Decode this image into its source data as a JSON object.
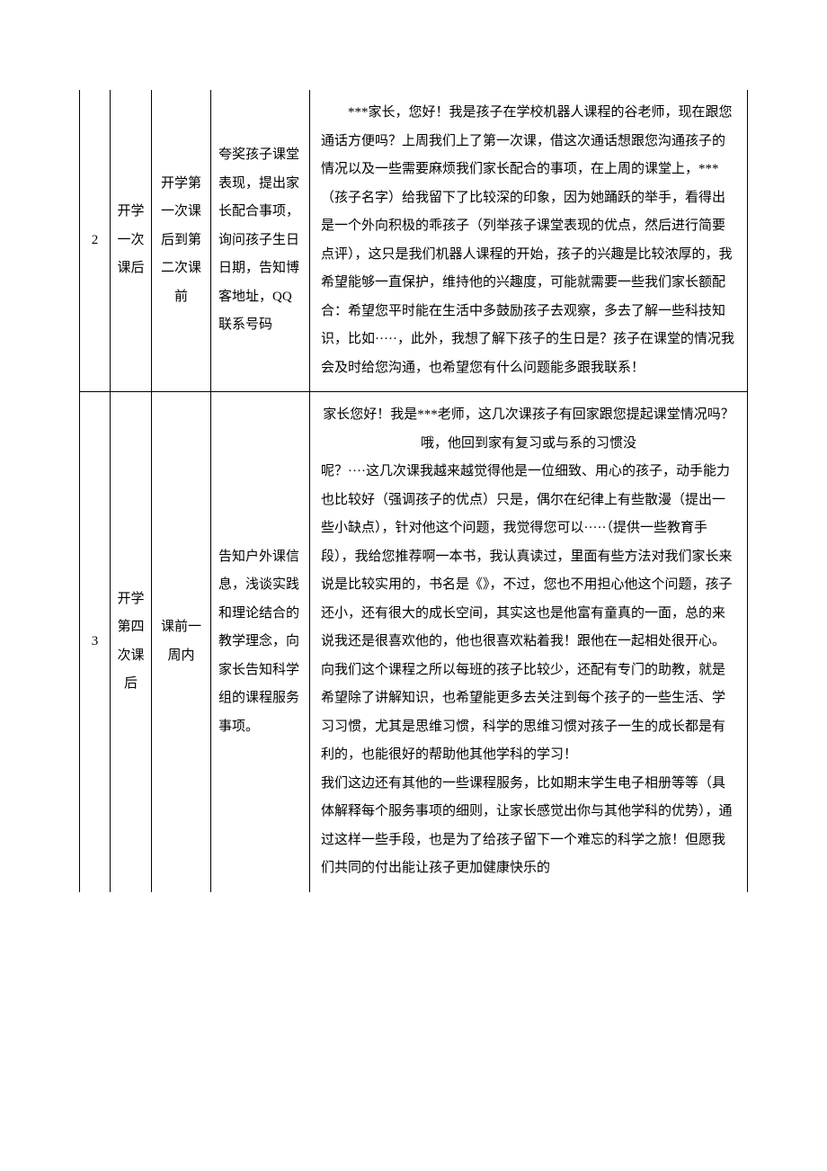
{
  "rows": [
    {
      "num": "2",
      "stage": "开学一次课后",
      "period": "开学第一次课后到第二次课前",
      "summary": "夸奖孩子课堂表现，提出家长配合事项，询问孩子生日日期，告知博客地址，QQ 联系号码",
      "detail_paras": [
        "***家长，您好！我是孩子在学校机器人课程的谷老师，现在跟您通话方便吗？上周我们上了第一次课，借这次通话想跟您沟通孩子的情况以及一些需要麻烦我们家长配合的事项，在上周的课堂上，***（孩子名字）给我留下了比较深的印象，因为她踊跃的举手，看得出是一个外向积极的乖孩子（列举孩子课堂表现的优点，然后进行简要点评），这只是我们机器人课程的开始，孩子的兴趣是比较浓厚的，我希望能够一直保护，维持他的兴趣度，可能就需要一些我们家长额配合：希望您平时能在生活中多鼓励孩子去观察，多去了解一些科技知识，比如·····，此外，我想了解下孩子的生日是？孩子在课堂的情况我会及时给您沟通，也希望您有什么问题能多跟我联系！"
      ]
    },
    {
      "num": "3",
      "stage": "开学第四次课后",
      "period": "课前一周内",
      "summary": "告知户外课信息，浅谈实践和理论结合的教学理念，向家长告知科学组的课程服务事项。",
      "detail_paras": [
        "家长您好！我是***老师，这几次课孩子有回家跟您提起课堂情况吗？哦，他回到家有复习或与系的习惯没",
        "呢？····这几次课我越来越觉得他是一位细致、用心的孩子，动手能力也比较好（强调孩子的优点）只是，偶尔在纪律上有些散漫（提出一些小缺点），针对他这个问题，我觉得您可以·····（提供一些教育手段），我给您推荐啊一本书，我认真读过，里面有些方法对我们家长来说是比较实用的，书名是《》，不过，您也不用担心他这个问题，孩子还小，还有很大的成长空间，其实这也是他富有童真的一面，总的来说我还是很喜欢他的，他也很喜欢粘着我！跟他在一起相处很开心。向我们这个课程之所以每班的孩子比较少，还配有专门的助教，就是希望除了讲解知识，也希望能更多去关注到每个孩子的一些生活、学习习惯，尤其是思维习惯，科学的思维习惯对孩子一生的成长都是有利的，也能很好的帮助他其他学科的学习！",
        "我们这边还有其他的一些课程服务，比如期末学生电子相册等等（具体解释每个服务事项的细则，让家长感觉出你与其他学科的优势），通过这样一些手段，也是为了给孩子留下一个难忘的科学之旅！但愿我们共同的付出能让孩子更加健康快乐的"
      ]
    }
  ]
}
